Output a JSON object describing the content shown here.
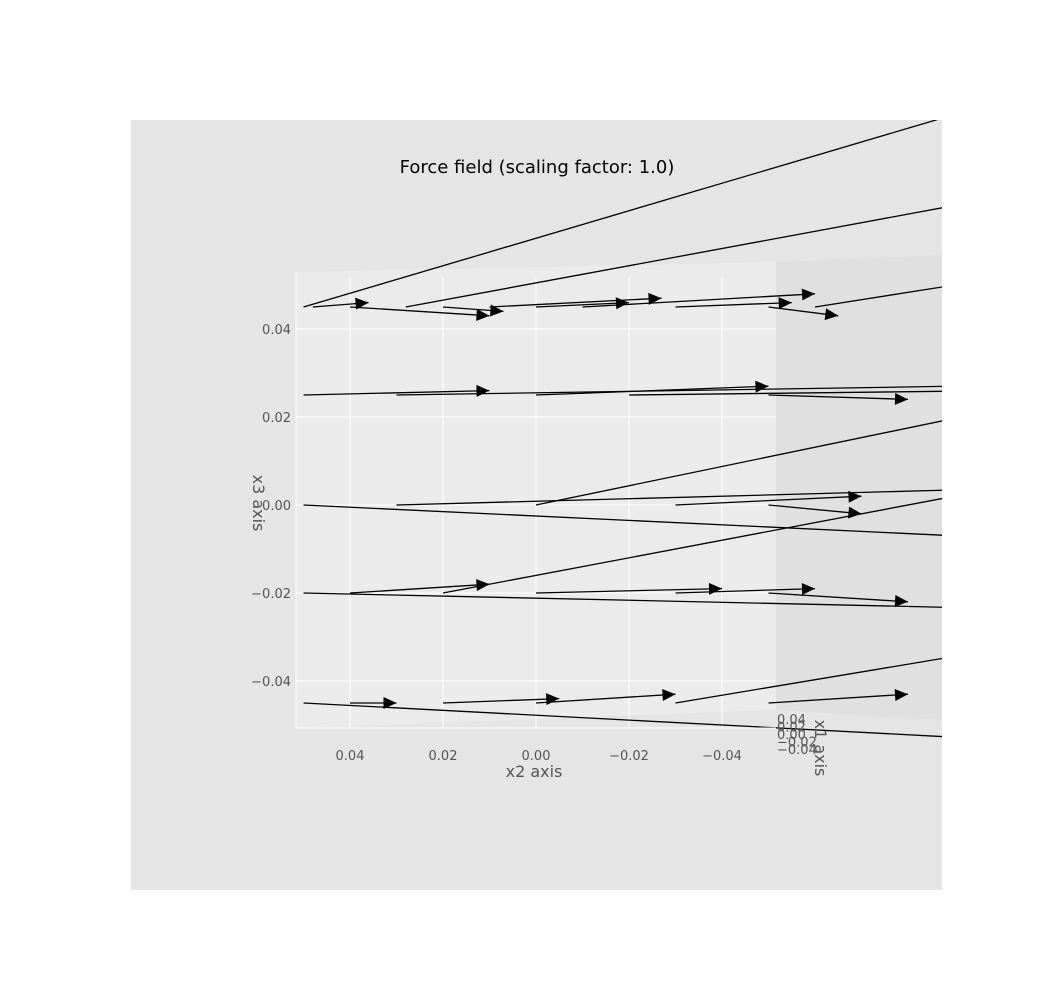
{
  "colors": {
    "figure_background": "#ffffff",
    "axes_background": "#e5e5e5",
    "pane_left": "#ebebeb",
    "pane_right": "#e0e0e0",
    "grid": "#ffffff",
    "arrow": "#000000",
    "text": "#555555"
  },
  "chart_data": {
    "type": "quiver3d",
    "title": "Force field (scaling factor: 1.0)",
    "xlabel": "x1 axis",
    "ylabel": "x2 axis",
    "zlabel": "x3 axis",
    "x1_ticks": [
      "−0.04",
      "−0.02",
      "0.00",
      "0.02",
      "0.04"
    ],
    "x2_ticks": [
      "0.04",
      "0.02",
      "0.00",
      "−0.02",
      "−0.04"
    ],
    "x3_ticks": [
      "0.04",
      "0.02",
      "0.00",
      "−0.02",
      "−0.04"
    ],
    "x1_range": [
      -0.05,
      0.05
    ],
    "x2_range": [
      -0.05,
      0.05
    ],
    "x3_range": [
      -0.05,
      0.05
    ],
    "grid": true,
    "view": "looking along x1 axis (x2 horizontal, x3 vertical)",
    "arrow_color": "#000000",
    "arrows": [
      {
        "x1": 0,
        "x2": 0.05,
        "x3": 0.045,
        "u": 0,
        "v": -0.16,
        "w": 0.05
      },
      {
        "x1": 0,
        "x2": 0.028,
        "x3": 0.045,
        "u": 0,
        "v": -0.22,
        "w": 0.043
      },
      {
        "x1": 0,
        "x2": 0.048,
        "x3": 0.045,
        "u": 0,
        "v": -0.012,
        "w": 0.001
      },
      {
        "x1": 0,
        "x2": 0.04,
        "x3": 0.045,
        "u": 0,
        "v": -0.03,
        "w": -0.002
      },
      {
        "x1": 0,
        "x2": 0.02,
        "x3": 0.045,
        "u": 0,
        "v": -0.013,
        "w": -0.001
      },
      {
        "x1": 0,
        "x2": 0.01,
        "x3": 0.045,
        "u": 0,
        "v": -0.037,
        "w": 0.002
      },
      {
        "x1": 0,
        "x2": 0.0,
        "x3": 0.045,
        "u": 0,
        "v": -0.02,
        "w": 0.001
      },
      {
        "x1": 0,
        "x2": -0.01,
        "x3": 0.045,
        "u": 0,
        "v": -0.05,
        "w": 0.003
      },
      {
        "x1": 0,
        "x2": -0.03,
        "x3": 0.045,
        "u": 0,
        "v": -0.025,
        "w": 0.001
      },
      {
        "x1": 0,
        "x2": -0.05,
        "x3": 0.045,
        "u": 0,
        "v": -0.015,
        "w": -0.002
      },
      {
        "x1": 0,
        "x2": -0.06,
        "x3": 0.045,
        "u": 0,
        "v": -0.12,
        "w": 0.02
      },
      {
        "x1": 0,
        "x2": 0.05,
        "x3": 0.025,
        "u": 0,
        "v": -0.04,
        "w": 0.001
      },
      {
        "x1": 0,
        "x2": 0.03,
        "x3": 0.025,
        "u": 0,
        "v": -0.18,
        "w": 0.003
      },
      {
        "x1": 0,
        "x2": 0.0,
        "x3": 0.025,
        "u": 0,
        "v": -0.05,
        "w": 0.002
      },
      {
        "x1": 0,
        "x2": -0.02,
        "x3": 0.025,
        "u": 0,
        "v": -0.08,
        "w": 0.001
      },
      {
        "x1": 0,
        "x2": -0.05,
        "x3": 0.025,
        "u": 0,
        "v": -0.03,
        "w": -0.001
      },
      {
        "x1": 0,
        "x2": 0.05,
        "x3": 0.0,
        "u": 0,
        "v": -0.2,
        "w": -0.01
      },
      {
        "x1": 0,
        "x2": 0.03,
        "x3": 0.0,
        "u": 0,
        "v": -0.14,
        "w": 0.004
      },
      {
        "x1": 0,
        "x2": 0.0,
        "x3": 0.0,
        "u": 0,
        "v": -0.16,
        "w": 0.035
      },
      {
        "x1": 0,
        "x2": -0.03,
        "x3": 0.0,
        "u": 0,
        "v": -0.04,
        "w": 0.002
      },
      {
        "x1": 0,
        "x2": -0.05,
        "x3": 0.0,
        "u": 0,
        "v": -0.02,
        "w": -0.002
      },
      {
        "x1": 0,
        "x2": 0.05,
        "x3": -0.02,
        "u": 0,
        "v": -0.17,
        "w": -0.004
      },
      {
        "x1": 0,
        "x2": 0.04,
        "x3": -0.02,
        "u": 0,
        "v": -0.03,
        "w": 0.002
      },
      {
        "x1": 0,
        "x2": 0.02,
        "x3": -0.02,
        "u": 0,
        "v": -0.15,
        "w": 0.03
      },
      {
        "x1": 0,
        "x2": 0.0,
        "x3": -0.02,
        "u": 0,
        "v": -0.04,
        "w": 0.001
      },
      {
        "x1": 0,
        "x2": -0.03,
        "x3": -0.02,
        "u": 0,
        "v": -0.03,
        "w": 0.001
      },
      {
        "x1": 0,
        "x2": -0.05,
        "x3": -0.02,
        "u": 0,
        "v": -0.03,
        "w": -0.002
      },
      {
        "x1": 0,
        "x2": 0.05,
        "x3": -0.045,
        "u": 0,
        "v": -0.18,
        "w": -0.01
      },
      {
        "x1": 0,
        "x2": 0.04,
        "x3": -0.045,
        "u": 0,
        "v": -0.01,
        "w": 0.0
      },
      {
        "x1": 0,
        "x2": 0.02,
        "x3": -0.045,
        "u": 0,
        "v": -0.025,
        "w": 0.001
      },
      {
        "x1": 0,
        "x2": 0.0,
        "x3": -0.045,
        "u": 0,
        "v": -0.03,
        "w": 0.002
      },
      {
        "x1": 0,
        "x2": -0.03,
        "x3": -0.045,
        "u": 0,
        "v": -0.17,
        "w": 0.03
      },
      {
        "x1": 0,
        "x2": -0.05,
        "x3": -0.045,
        "u": 0,
        "v": -0.03,
        "w": 0.002
      }
    ]
  }
}
